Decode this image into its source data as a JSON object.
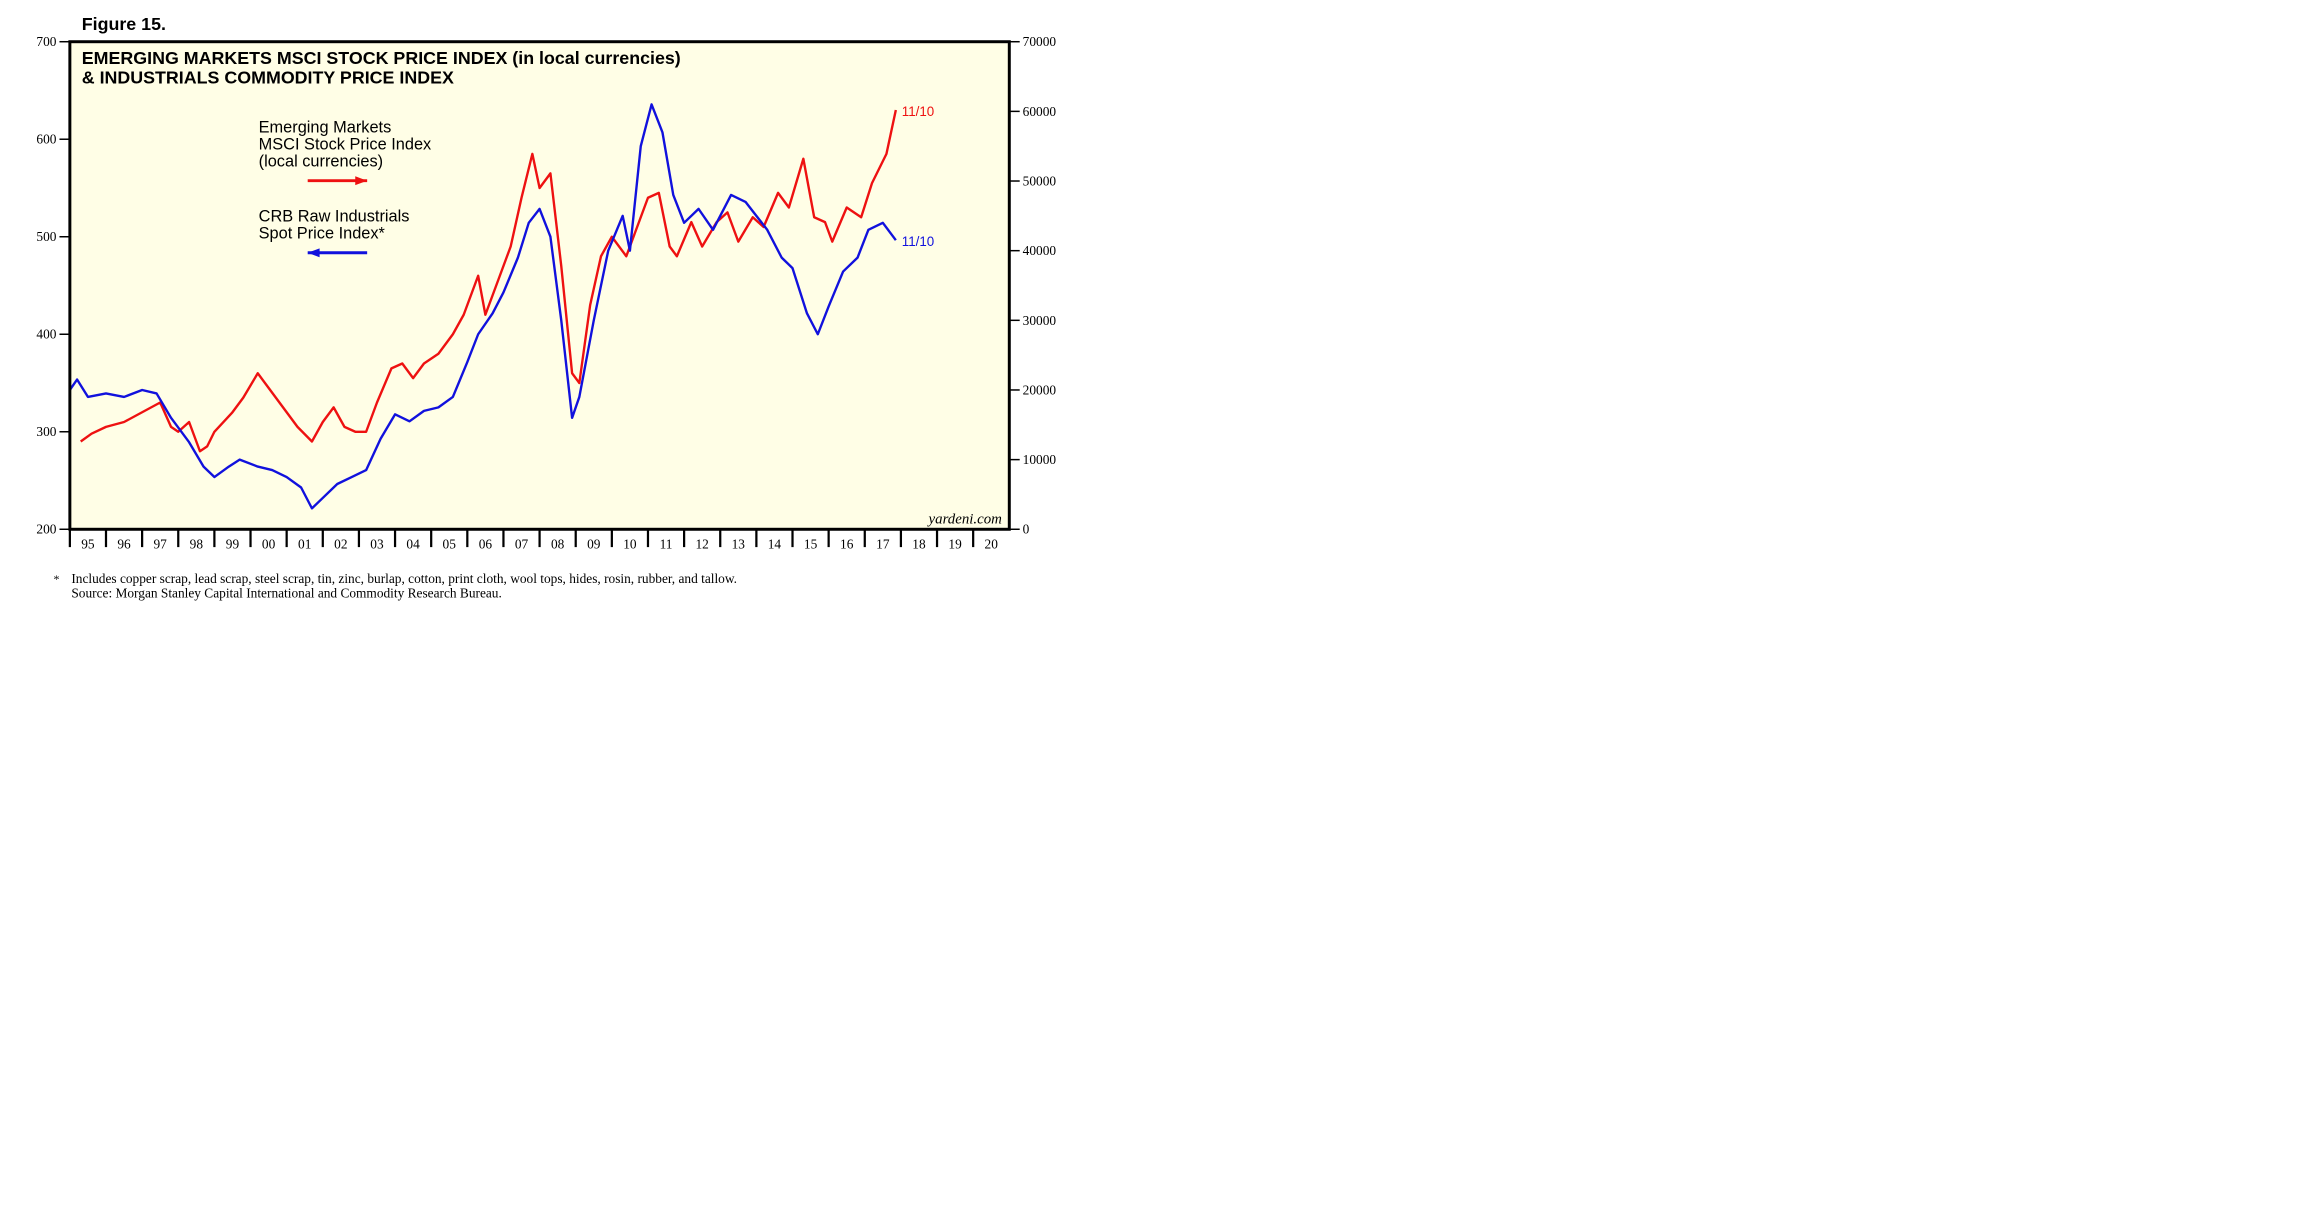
{
  "chart_data": {
    "type": "line",
    "figure_label": "Figure 15.",
    "title": [
      "EMERGING MARKETS MSCI STOCK PRICE INDEX (in local currencies)",
      "& INDUSTRIALS COMMODITY PRICE INDEX"
    ],
    "xlim": [
      1995,
      2021
    ],
    "xticks": [
      {
        "value": 1995,
        "label": "95"
      },
      {
        "value": 1996,
        "label": "96"
      },
      {
        "value": 1997,
        "label": "97"
      },
      {
        "value": 1998,
        "label": "98"
      },
      {
        "value": 1999,
        "label": "99"
      },
      {
        "value": 2000,
        "label": "00"
      },
      {
        "value": 2001,
        "label": "01"
      },
      {
        "value": 2002,
        "label": "02"
      },
      {
        "value": 2003,
        "label": "03"
      },
      {
        "value": 2004,
        "label": "04"
      },
      {
        "value": 2005,
        "label": "05"
      },
      {
        "value": 2006,
        "label": "06"
      },
      {
        "value": 2007,
        "label": "07"
      },
      {
        "value": 2008,
        "label": "08"
      },
      {
        "value": 2009,
        "label": "09"
      },
      {
        "value": 2010,
        "label": "10"
      },
      {
        "value": 2011,
        "label": "11"
      },
      {
        "value": 2012,
        "label": "12"
      },
      {
        "value": 2013,
        "label": "13"
      },
      {
        "value": 2014,
        "label": "14"
      },
      {
        "value": 2015,
        "label": "15"
      },
      {
        "value": 2016,
        "label": "16"
      },
      {
        "value": 2017,
        "label": "17"
      },
      {
        "value": 2018,
        "label": "18"
      },
      {
        "value": 2019,
        "label": "19"
      },
      {
        "value": 2020,
        "label": "20"
      }
    ],
    "ylim": [
      200,
      700
    ],
    "yticks": [
      200,
      300,
      400,
      500,
      600,
      700
    ],
    "y2lim": [
      0,
      70000
    ],
    "y2ticks": [
      0,
      10000,
      20000,
      30000,
      40000,
      50000,
      60000,
      70000
    ],
    "series": [
      {
        "name": [
          "Emerging Markets",
          "MSCI Stock Price Index",
          "(local currencies)"
        ],
        "color": "#ee1111",
        "end_label": "11/10",
        "x": [
          1995.3,
          1995.6,
          1996.0,
          1996.5,
          1997.0,
          1997.5,
          1997.8,
          1998.0,
          1998.3,
          1998.6,
          1998.8,
          1999.0,
          1999.5,
          1999.8,
          2000.2,
          2000.5,
          2000.8,
          2001.0,
          2001.3,
          2001.7,
          2002.0,
          2002.3,
          2002.6,
          2002.9,
          2003.2,
          2003.5,
          2003.9,
          2004.2,
          2004.5,
          2004.8,
          2005.2,
          2005.6,
          2005.9,
          2006.3,
          2006.5,
          2006.9,
          2007.2,
          2007.5,
          2007.8,
          2008.0,
          2008.3,
          2008.6,
          2008.9,
          2009.1,
          2009.4,
          2009.7,
          2010.0,
          2010.4,
          2010.8,
          2011.0,
          2011.3,
          2011.6,
          2011.8,
          2012.2,
          2012.5,
          2012.9,
          2013.2,
          2013.5,
          2013.9,
          2014.2,
          2014.6,
          2014.9,
          2015.3,
          2015.6,
          2015.9,
          2016.1,
          2016.5,
          2016.9,
          2017.2,
          2017.6,
          2017.86
        ],
        "values": [
          290,
          298,
          305,
          310,
          320,
          330,
          305,
          300,
          310,
          280,
          285,
          300,
          320,
          335,
          360,
          345,
          330,
          320,
          305,
          290,
          310,
          325,
          305,
          300,
          300,
          330,
          365,
          370,
          355,
          370,
          380,
          400,
          420,
          460,
          420,
          460,
          490,
          540,
          585,
          550,
          565,
          470,
          360,
          350,
          430,
          480,
          500,
          480,
          520,
          540,
          545,
          490,
          480,
          515,
          490,
          515,
          525,
          495,
          520,
          510,
          545,
          530,
          580,
          520,
          515,
          495,
          530,
          520,
          555,
          585,
          630
        ]
      },
      {
        "name": [
          "CRB Raw Industrials",
          "Spot Price Index*"
        ],
        "color": "#1111dd",
        "axis": "y2",
        "end_label": "11/10",
        "x": [
          1995.0,
          1995.2,
          1995.5,
          1996.0,
          1996.5,
          1997.0,
          1997.4,
          1997.8,
          1998.3,
          1998.7,
          1999.0,
          1999.4,
          1999.7,
          2000.2,
          2000.6,
          2001.0,
          2001.4,
          2001.7,
          2002.0,
          2002.4,
          2002.8,
          2003.2,
          2003.6,
          2004.0,
          2004.4,
          2004.8,
          2005.2,
          2005.6,
          2006.0,
          2006.3,
          2006.7,
          2007.0,
          2007.4,
          2007.7,
          2008.0,
          2008.3,
          2008.6,
          2008.9,
          2009.1,
          2009.5,
          2009.9,
          2010.3,
          2010.5,
          2010.8,
          2011.1,
          2011.4,
          2011.7,
          2012.0,
          2012.4,
          2012.8,
          2013.3,
          2013.7,
          2014.0,
          2014.3,
          2014.7,
          2015.0,
          2015.4,
          2015.7,
          2016.0,
          2016.4,
          2016.8,
          2017.1,
          2017.5,
          2017.86
        ],
        "values": [
          20000,
          21500,
          19000,
          19500,
          19000,
          20000,
          19500,
          16000,
          12500,
          9000,
          7500,
          9000,
          10000,
          9000,
          8500,
          7500,
          6000,
          3000,
          4500,
          6500,
          7500,
          8500,
          13000,
          16500,
          15500,
          17000,
          17500,
          19000,
          24000,
          28000,
          31000,
          34000,
          39000,
          44000,
          46000,
          42000,
          30000,
          16000,
          19000,
          30000,
          40000,
          45000,
          40000,
          55000,
          61000,
          57000,
          48000,
          44000,
          46000,
          43000,
          48000,
          47000,
          45000,
          43000,
          39000,
          37500,
          31000,
          28000,
          32000,
          37000,
          39000,
          43000,
          44000,
          41500
        ]
      }
    ],
    "watermark": "yardeni.com",
    "footnote_marker": "*",
    "notes": [
      "Includes copper scrap, lead scrap, steel scrap, tin, zinc, burlap, cotton, print cloth, wool tops, hides, rosin, rubber, and tallow.",
      "Source: Morgan Stanley Capital International and Commodity Research Bureau."
    ]
  }
}
